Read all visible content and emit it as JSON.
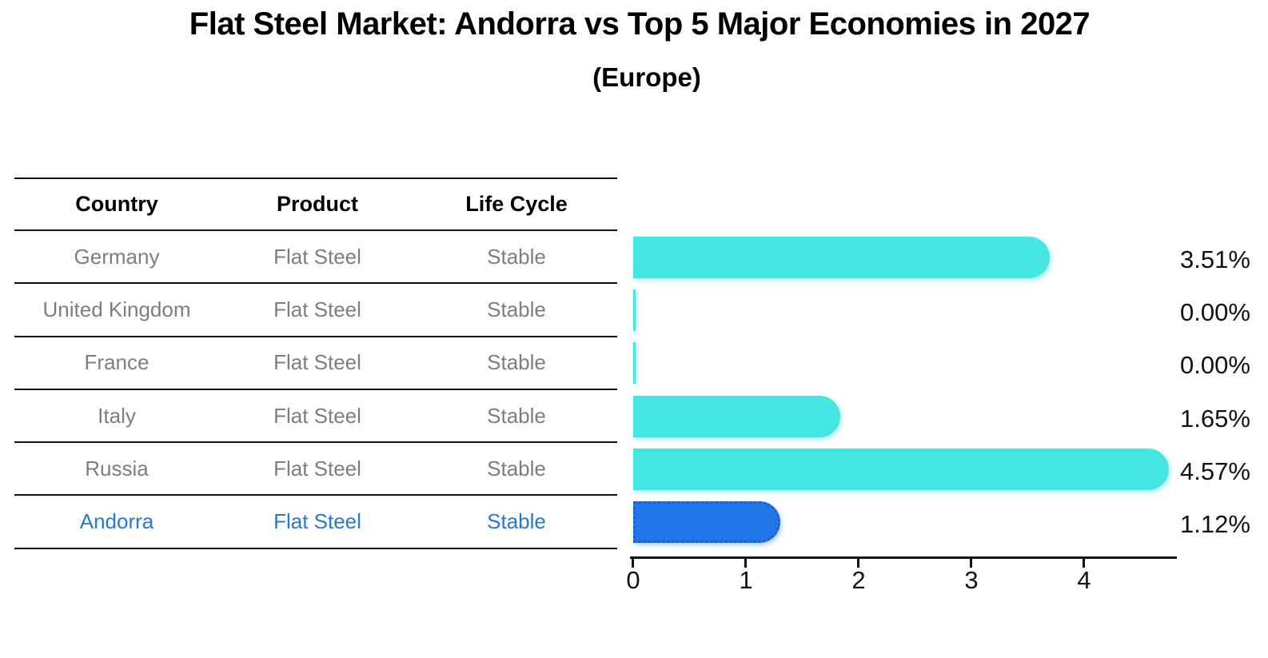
{
  "title": "Flat Steel Market: Andorra vs Top 5 Major Economies in 2027",
  "subtitle": "(Europe)",
  "table": {
    "headers": [
      "Country",
      "Product",
      "Life Cycle"
    ],
    "rows": [
      {
        "country": "Germany",
        "product": "Flat Steel",
        "life_cycle": "Stable",
        "highlight": false
      },
      {
        "country": "United Kingdom",
        "product": "Flat Steel",
        "life_cycle": "Stable",
        "highlight": false
      },
      {
        "country": "France",
        "product": "Flat Steel",
        "life_cycle": "Stable",
        "highlight": false
      },
      {
        "country": "Italy",
        "product": "Flat Steel",
        "life_cycle": "Stable",
        "highlight": false
      },
      {
        "country": "Russia",
        "product": "Flat Steel",
        "life_cycle": "Stable",
        "highlight": false
      },
      {
        "country": "Andorra",
        "product": "Flat Steel",
        "life_cycle": "Stable",
        "highlight": true
      }
    ]
  },
  "chart_data": {
    "type": "bar",
    "orientation": "horizontal",
    "title": "Flat Steel Market: Andorra vs Top 5 Major Economies in 2027",
    "subtitle": "(Europe)",
    "categories": [
      "Germany",
      "United Kingdom",
      "France",
      "Italy",
      "Russia",
      "Andorra"
    ],
    "values": [
      3.51,
      0.0,
      0.0,
      1.65,
      4.57,
      1.12
    ],
    "value_labels": [
      "3.51%",
      "0.00%",
      "0.00%",
      "1.65%",
      "4.57%",
      "1.12%"
    ],
    "xticks": [
      0,
      1,
      2,
      3,
      4
    ],
    "xlim": [
      0,
      4.8
    ],
    "grid": false,
    "legend": "none",
    "highlight_category": "Andorra",
    "colors": {
      "default_bar": "#45E6E2",
      "highlight_bar": "#2177E8",
      "highlight_border": "#1A5FD0",
      "row_text": "#7E7E7E",
      "highlight_text": "#2878D0",
      "header_text": "#000000",
      "axis": "#111111"
    }
  }
}
